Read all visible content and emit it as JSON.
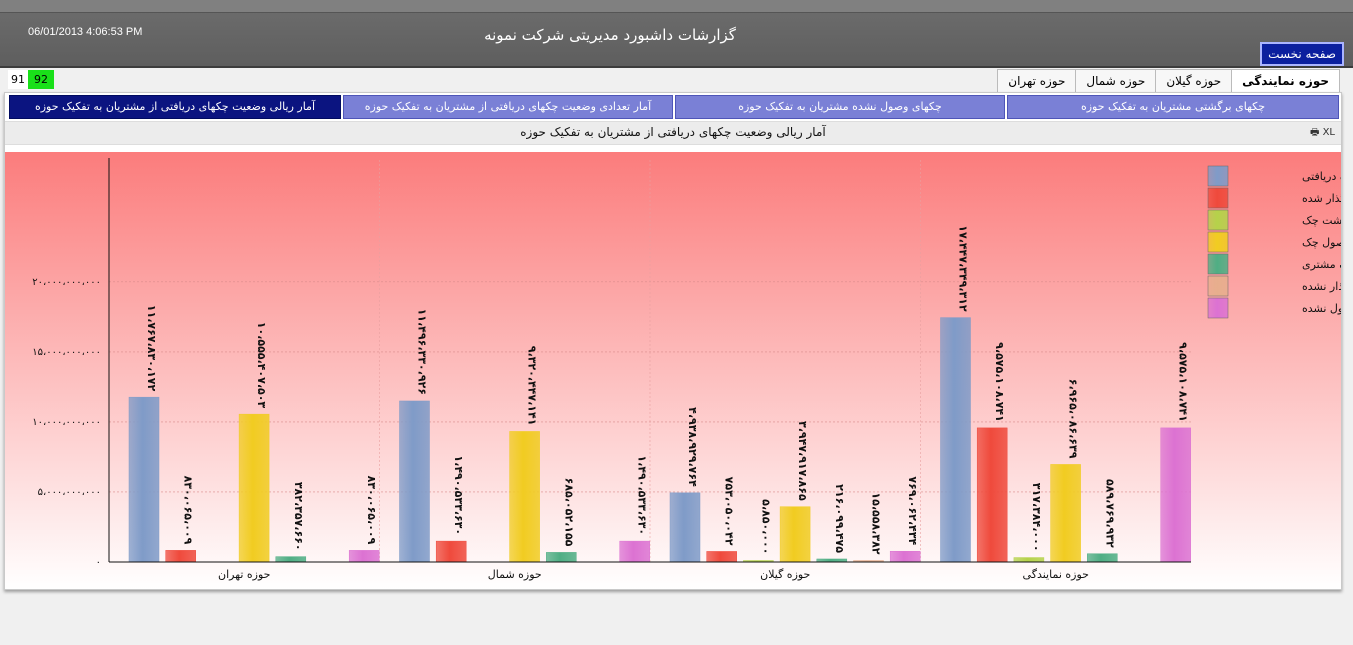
{
  "header": {
    "timestamp": "06/01/2013  4:06:53 PM",
    "title": "گزارشات داشبورد مدیریتی شرکت نمونه",
    "home_button": "صفحه نخست"
  },
  "counters": {
    "left": "91",
    "right": "92"
  },
  "region_tabs": [
    {
      "label": "حوزه نمایندگی",
      "active": true
    },
    {
      "label": "حوزه گیلان",
      "active": false
    },
    {
      "label": "حوزه شمال",
      "active": false
    },
    {
      "label": "حوزه تهران",
      "active": false
    }
  ],
  "report_tabs": [
    {
      "label": "چکهای برگشتی مشتریان به تفکیک حوزه",
      "active": false
    },
    {
      "label": "چکهای وصول نشده مشتریان به تفکیک حوزه",
      "active": false
    },
    {
      "label": "آمار تعدادی وضعیت چکهای دریافتی از مشتریان به تفکیک حوزه",
      "active": false
    },
    {
      "label": "آمار ریالی وضعیت چکهای دریافتی از مشتریان به تفکیک حوزه",
      "active": true
    }
  ],
  "chart_toolbar": {
    "export_label": "XL"
  },
  "colors": {
    "blue": "#7f9bc8",
    "red": "#ef4a3c",
    "lime": "#b5d24a",
    "yellow": "#f1cc21",
    "green": "#4fae84",
    "peach": "#e7ae8d",
    "pink": "#dc72d2",
    "bg_top": "#fb7c7c",
    "bg_bottom": "#ffffff"
  },
  "chart_data": {
    "type": "bar",
    "title": "آمار ریالی وضعیت چکهای دریافتی از مشتریان به تفکیک حوزه",
    "ylim": [
      0,
      20000000000
    ],
    "yticks": [
      0,
      5000000000,
      10000000000,
      15000000000,
      20000000000
    ],
    "ytick_labels": [
      "۰",
      "۵،۰۰۰،۰۰۰،۰۰۰",
      "۱۰،۰۰۰،۰۰۰،۰۰۰",
      "۱۵،۰۰۰،۰۰۰،۰۰۰",
      "۲۰،۰۰۰،۰۰۰،۰۰۰"
    ],
    "legend_position": "top-right",
    "grid": true,
    "categories": [
      "حوزه تهران",
      "حوزه شمال",
      "حوزه گیلان",
      "حوزه نمایندگی"
    ],
    "series": [
      {
        "name": "چک دریافتی",
        "color": "#7f9bc8",
        "values": [
          11767830172,
          11496330926,
          4938929764,
          17447349312
        ],
        "labels": [
          "۱۱،۷۶۷،۸۳۰،۱۷۲",
          "۱۱،۴۹۶،۳۳۰،۹۲۶",
          "۴،۹۳۸،۹۲۹،۷۶۴",
          "۱۷،۴۴۷،۳۴۹،۳۱۲"
        ]
      },
      {
        "name": "چک واگذار شده",
        "color": "#ef4a3c",
        "values": [
          830065009,
          1490533630,
          753050042,
          9575108741
        ],
        "labels": [
          "۸۳۰،۰۶۵،۰۰۹",
          "۱،۴۹۰،۵۳۳،۶۳۰",
          "۷۵۳،۰۵۰،۰۴۲",
          "۹،۵۷۵،۱۰۸،۷۴۱"
        ]
      },
      {
        "name": "برگشت چک",
        "color": "#b5d24a",
        "values": [
          null,
          null,
          5850000,
          317384000
        ],
        "labels": [
          "",
          "",
          "۵،۸۵۰،۰۰۰",
          "۳۱۷،۳۸۴،۰۰۰"
        ]
      },
      {
        "name": "وصول چک",
        "color": "#f1cc21",
        "values": [
          10555407503,
          9320447141,
          3947917865,
          6965086639
        ],
        "labels": [
          "۱۰،۵۵۵،۴۰۷،۵۰۳",
          "۹،۳۲۰،۴۴۷،۱۴۱",
          "۳،۹۴۷،۹۱۷،۸۶۵",
          "۶،۹۶۵،۰۸۶،۶۳۹"
        ]
      },
      {
        "name": "انصراف مشتری",
        "color": "#4fae84",
        "values": [
          382357660,
          685052155,
          216099475,
          589769932
        ],
        "labels": [
          "۳۸۲،۳۵۷،۶۶۰",
          "۶۸۵،۰۵۲،۱۵۵",
          "۲۱۶،۰۹۹،۴۷۵",
          "۵۸۹،۷۶۹،۹۳۲"
        ]
      },
      {
        "name": "چک واگذار نشده",
        "color": "#e7ae8d",
        "values": [
          null,
          null,
          15558382,
          null
        ],
        "labels": [
          "",
          "",
          "۱۵،۵۵۸،۳۸۲",
          ""
        ]
      },
      {
        "name": "چک وصول نشده",
        "color": "#dc72d2",
        "values": [
          830065009,
          1490533630,
          769062434,
          9575108741
        ],
        "labels": [
          "۸۳۰،۰۶۵،۰۰۹",
          "۱،۴۹۰،۵۳۳،۶۳۰",
          "۷۶۹،۰۶۲،۴۳۴",
          "۹،۵۷۵،۱۰۸،۷۴۱"
        ]
      }
    ]
  }
}
